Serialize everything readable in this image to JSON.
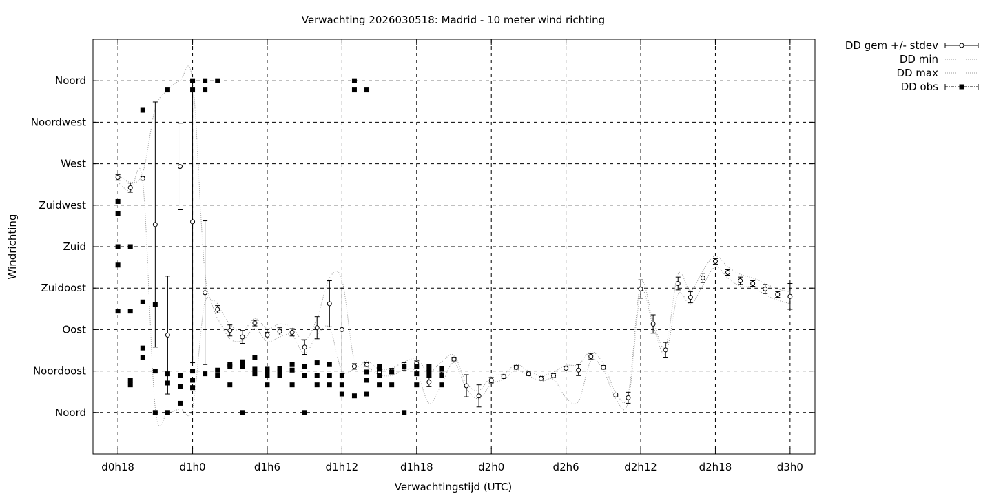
{
  "chart_data": {
    "type": "line",
    "title": "Verwachting 2026030518: Madrid - 10 meter wind richting",
    "xlabel": "Verwachtingstijd (UTC)",
    "ylabel": "Windrichting",
    "x_unit": "hours",
    "xlim": [
      16,
      74
    ],
    "ylim": [
      -45,
      405
    ],
    "x_ticks": [
      {
        "value": 18,
        "label": "d0h18"
      },
      {
        "value": 24,
        "label": "d1h0"
      },
      {
        "value": 30,
        "label": "d1h6"
      },
      {
        "value": 36,
        "label": "d1h12"
      },
      {
        "value": 42,
        "label": "d1h18"
      },
      {
        "value": 48,
        "label": "d2h0"
      },
      {
        "value": 54,
        "label": "d2h6"
      },
      {
        "value": 60,
        "label": "d2h12"
      },
      {
        "value": 66,
        "label": "d2h18"
      },
      {
        "value": 72,
        "label": "d3h0"
      }
    ],
    "y_ticks": [
      {
        "value": 0,
        "label": "Noord"
      },
      {
        "value": 45,
        "label": "Noordoost"
      },
      {
        "value": 90,
        "label": "Oost"
      },
      {
        "value": 135,
        "label": "Zuidoost"
      },
      {
        "value": 180,
        "label": "Zuid"
      },
      {
        "value": 225,
        "label": "Zuidwest"
      },
      {
        "value": 270,
        "label": "West"
      },
      {
        "value": 315,
        "label": "Noordwest"
      },
      {
        "value": 360,
        "label": "Noord"
      }
    ],
    "grid": true,
    "legend_position": "outside-top-right",
    "series": [
      {
        "name": "DD gem +/- stdev",
        "style": "errorbar-circle",
        "x": [
          18,
          19,
          20,
          21,
          22,
          23,
          24,
          25,
          26,
          27,
          28,
          29,
          30,
          31,
          32,
          33,
          34,
          35,
          36,
          37,
          38,
          39,
          40,
          41,
          42,
          43,
          44,
          45,
          46,
          47,
          48,
          49,
          50,
          51,
          52,
          53,
          54,
          55,
          56,
          57,
          58,
          59,
          60,
          61,
          62,
          63,
          64,
          65,
          66,
          67,
          68,
          69,
          70,
          71,
          72
        ],
        "mean": [
          255,
          244,
          254,
          204,
          84,
          267,
          207,
          130,
          112,
          89,
          82,
          97,
          84,
          88,
          87,
          71,
          92,
          118,
          90,
          50,
          52,
          44,
          45,
          50,
          53,
          33,
          41,
          58,
          29,
          18,
          35,
          39,
          49,
          42,
          37,
          40,
          48,
          46,
          61,
          49,
          19,
          16,
          134,
          96,
          68,
          140,
          125,
          146,
          164,
          152,
          143,
          140,
          134,
          128,
          126
        ],
        "stdev": [
          3,
          5,
          2,
          133,
          64,
          47,
          153,
          78,
          4,
          6,
          7,
          3,
          3,
          4,
          4,
          8,
          12,
          25,
          45,
          3,
          2,
          2,
          3,
          4,
          3,
          5,
          3,
          2,
          12,
          12,
          3,
          2,
          2,
          2,
          2,
          2,
          1,
          6,
          3,
          2,
          2,
          6,
          10,
          10,
          8,
          7,
          6,
          5,
          3,
          3,
          4,
          3,
          5,
          3,
          14
        ]
      },
      {
        "name": "DD min",
        "style": "dotted",
        "x": [
          18,
          19,
          20,
          21,
          22,
          23,
          24,
          25,
          26,
          27,
          28,
          29,
          30,
          31,
          32,
          33,
          34,
          35,
          36,
          37,
          38,
          39,
          40,
          41,
          42,
          43,
          44,
          45,
          46,
          47,
          48,
          49,
          50,
          51,
          52,
          53,
          54,
          55,
          56,
          57,
          58,
          59,
          60,
          61,
          62,
          63,
          64,
          65,
          66,
          67,
          68,
          69,
          70,
          71,
          72
        ],
        "values": [
          250,
          240,
          250,
          5,
          0,
          4,
          5,
          120,
          102,
          80,
          78,
          91,
          77,
          82,
          84,
          64,
          84,
          92,
          45,
          47,
          49,
          41,
          40,
          46,
          44,
          10,
          31,
          54,
          26,
          15,
          31,
          36,
          46,
          40,
          34,
          36,
          16,
          12,
          56,
          46,
          15,
          12,
          130,
          94,
          64,
          128,
          117,
          138,
          158,
          146,
          137,
          136,
          128,
          122,
          118
        ]
      },
      {
        "name": "DD max",
        "style": "dotted",
        "x": [
          18,
          19,
          20,
          21,
          22,
          23,
          24,
          25,
          26,
          27,
          28,
          29,
          30,
          31,
          32,
          33,
          34,
          35,
          36,
          37,
          38,
          39,
          40,
          41,
          42,
          43,
          44,
          45,
          46,
          47,
          48,
          49,
          50,
          51,
          52,
          53,
          54,
          55,
          56,
          57,
          58,
          59,
          60,
          61,
          62,
          63,
          64,
          65,
          66,
          67,
          68,
          69,
          70,
          71,
          72
        ],
        "values": [
          258,
          250,
          260,
          330,
          350,
          360,
          360,
          150,
          118,
          96,
          88,
          102,
          91,
          96,
          92,
          78,
          102,
          146,
          144,
          56,
          56,
          47,
          48,
          55,
          58,
          44,
          55,
          62,
          32,
          24,
          39,
          42,
          52,
          45,
          40,
          44,
          51,
          52,
          66,
          53,
          22,
          20,
          140,
          99,
          72,
          150,
          132,
          154,
          170,
          158,
          150,
          146,
          140,
          134,
          131
        ]
      },
      {
        "name": "DD obs",
        "style": "square",
        "points": [
          [
            18,
            216
          ],
          [
            18,
            229
          ],
          [
            18,
            180
          ],
          [
            18,
            160
          ],
          [
            18,
            110
          ],
          [
            19,
            180
          ],
          [
            19,
            110
          ],
          [
            19,
            30
          ],
          [
            19,
            35
          ],
          [
            20,
            328
          ],
          [
            20,
            120
          ],
          [
            20,
            70
          ],
          [
            20,
            60
          ],
          [
            21,
            45
          ],
          [
            21,
            117
          ],
          [
            21,
            0
          ],
          [
            22,
            350
          ],
          [
            22,
            42
          ],
          [
            22,
            32
          ],
          [
            22,
            0
          ],
          [
            23,
            40
          ],
          [
            23,
            28
          ],
          [
            23,
            10
          ],
          [
            24,
            360
          ],
          [
            24,
            350
          ],
          [
            24,
            45
          ],
          [
            24,
            35
          ],
          [
            24,
            27
          ],
          [
            25,
            360
          ],
          [
            25,
            350
          ],
          [
            25,
            42
          ],
          [
            26,
            360
          ],
          [
            26,
            46
          ],
          [
            26,
            40
          ],
          [
            27,
            52
          ],
          [
            27,
            50
          ],
          [
            27,
            30
          ],
          [
            28,
            55
          ],
          [
            28,
            50
          ],
          [
            28,
            0
          ],
          [
            29,
            60
          ],
          [
            29,
            47
          ],
          [
            29,
            42
          ],
          [
            30,
            47
          ],
          [
            30,
            45
          ],
          [
            30,
            40
          ],
          [
            30,
            30
          ],
          [
            31,
            48
          ],
          [
            31,
            45
          ],
          [
            31,
            40
          ],
          [
            32,
            52
          ],
          [
            32,
            46
          ],
          [
            32,
            30
          ],
          [
            33,
            50
          ],
          [
            33,
            40
          ],
          [
            33,
            0
          ],
          [
            34,
            54
          ],
          [
            34,
            40
          ],
          [
            34,
            30
          ],
          [
            35,
            52
          ],
          [
            35,
            40
          ],
          [
            35,
            30
          ],
          [
            36,
            40
          ],
          [
            36,
            30
          ],
          [
            36,
            20
          ],
          [
            37,
            360
          ],
          [
            37,
            350
          ],
          [
            37,
            18
          ],
          [
            38,
            350
          ],
          [
            38,
            44
          ],
          [
            38,
            35
          ],
          [
            38,
            20
          ],
          [
            39,
            50
          ],
          [
            39,
            47
          ],
          [
            39,
            40
          ],
          [
            39,
            30
          ],
          [
            40,
            30
          ],
          [
            40,
            44
          ],
          [
            41,
            50
          ],
          [
            41,
            0
          ],
          [
            42,
            50
          ],
          [
            42,
            42
          ],
          [
            42,
            30
          ],
          [
            43,
            50
          ],
          [
            43,
            45
          ],
          [
            43,
            40
          ],
          [
            44,
            48
          ],
          [
            44,
            40
          ],
          [
            44,
            30
          ]
        ]
      }
    ]
  }
}
